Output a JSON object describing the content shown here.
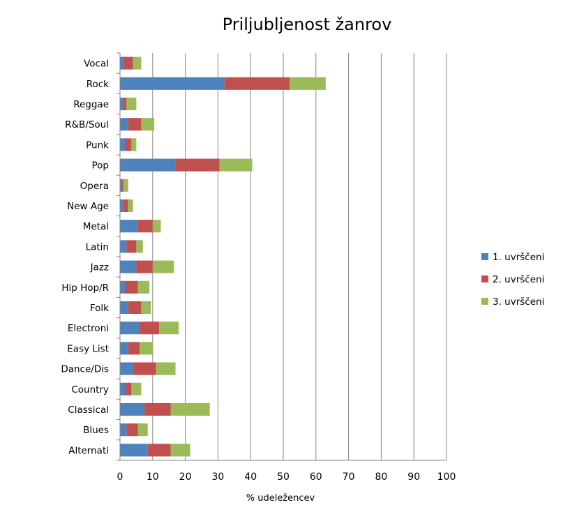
{
  "chart_data": {
    "type": "bar",
    "orientation": "horizontal",
    "stacked": true,
    "title": "Priljubljenost žanrov",
    "xlabel": "% udeležencev",
    "ylabel": "",
    "xlim": [
      0,
      100
    ],
    "xticks": [
      0,
      10,
      20,
      30,
      40,
      50,
      60,
      70,
      80,
      90,
      100
    ],
    "grid": "vertical",
    "legend_position": "right",
    "categories": [
      "Alternati",
      "Blues",
      "Classical",
      "Country",
      "Dance/Dis",
      "Easy List",
      "Electroni",
      "Folk",
      "Hip Hop/R",
      "Jazz",
      "Latin",
      "Metal",
      "New Age",
      "Opera",
      "Pop",
      "Punk",
      "R&B/Soul",
      "Reggae",
      "Rock",
      "Vocal"
    ],
    "series": [
      {
        "name": "1. uvrščeni",
        "color": "#4F81BD",
        "values": [
          8.5,
          2,
          7.5,
          1.5,
          4,
          2.5,
          6,
          2.5,
          1.5,
          5,
          2,
          5.5,
          1,
          0.5,
          17,
          1.5,
          2.5,
          1,
          32,
          1
        ]
      },
      {
        "name": "2. uvrščeni",
        "color": "#C0504D",
        "values": [
          7,
          3.5,
          8,
          2,
          7,
          3.5,
          6,
          4,
          4,
          5,
          3,
          4.5,
          1.5,
          0.5,
          13.5,
          2,
          4,
          1,
          20,
          3
        ]
      },
      {
        "name": "3. uvrščeni",
        "color": "#9BBB59",
        "values": [
          6,
          3,
          12,
          3,
          6,
          4,
          6,
          3,
          3.5,
          6.5,
          2,
          2.5,
          1.5,
          1.5,
          10,
          1.5,
          4,
          3,
          11,
          2.5
        ]
      }
    ]
  }
}
